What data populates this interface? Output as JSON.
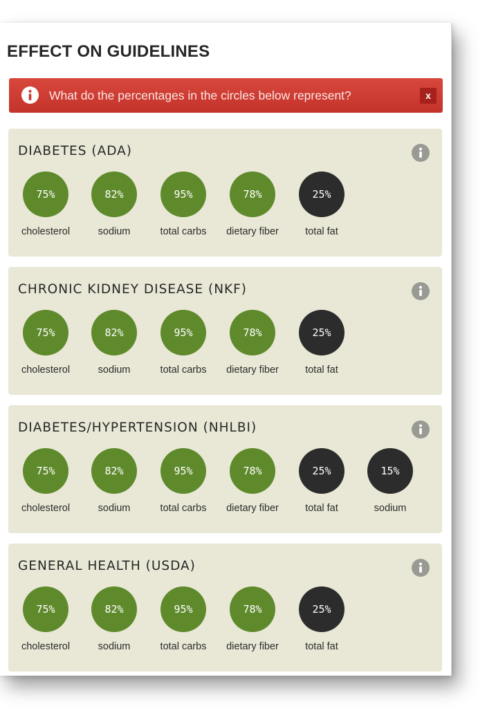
{
  "title": "EFFECT ON GUIDELINES",
  "alert": {
    "text": "What do the percentages in the circles below represent?",
    "close_label": "x",
    "icon": "info-icon"
  },
  "colors": {
    "good": "#5f8a2c",
    "over": "#2c2c2c",
    "alert": "#c83a30",
    "card": "#e9e8d6"
  },
  "guidelines": [
    {
      "title": "DIABETES (ADA)",
      "metrics": [
        {
          "value": "75%",
          "label": "cholesterol",
          "status": "good"
        },
        {
          "value": "82%",
          "label": "sodium",
          "status": "good"
        },
        {
          "value": "95%",
          "label": "total carbs",
          "status": "good"
        },
        {
          "value": "78%",
          "label": "dietary fiber",
          "status": "good"
        },
        {
          "value": "25%",
          "label": "total fat",
          "status": "over"
        }
      ]
    },
    {
      "title": "CHRONIC KIDNEY DISEASE (NKF)",
      "metrics": [
        {
          "value": "75%",
          "label": "cholesterol",
          "status": "good"
        },
        {
          "value": "82%",
          "label": "sodium",
          "status": "good"
        },
        {
          "value": "95%",
          "label": "total carbs",
          "status": "good"
        },
        {
          "value": "78%",
          "label": "dietary fiber",
          "status": "good"
        },
        {
          "value": "25%",
          "label": "total fat",
          "status": "over"
        }
      ]
    },
    {
      "title": "DIABETES/HYPERTENSION (NHLBI)",
      "metrics": [
        {
          "value": "75%",
          "label": "cholesterol",
          "status": "good"
        },
        {
          "value": "82%",
          "label": "sodium",
          "status": "good"
        },
        {
          "value": "95%",
          "label": "total carbs",
          "status": "good"
        },
        {
          "value": "78%",
          "label": "dietary fiber",
          "status": "good"
        },
        {
          "value": "25%",
          "label": "total fat",
          "status": "over"
        },
        {
          "value": "15%",
          "label": "sodium",
          "status": "over"
        }
      ]
    },
    {
      "title": "GENERAL HEALTH (USDA)",
      "metrics": [
        {
          "value": "75%",
          "label": "cholesterol",
          "status": "good"
        },
        {
          "value": "82%",
          "label": "sodium",
          "status": "good"
        },
        {
          "value": "95%",
          "label": "total carbs",
          "status": "good"
        },
        {
          "value": "78%",
          "label": "dietary fiber",
          "status": "good"
        },
        {
          "value": "25%",
          "label": "total fat",
          "status": "over"
        }
      ]
    }
  ]
}
